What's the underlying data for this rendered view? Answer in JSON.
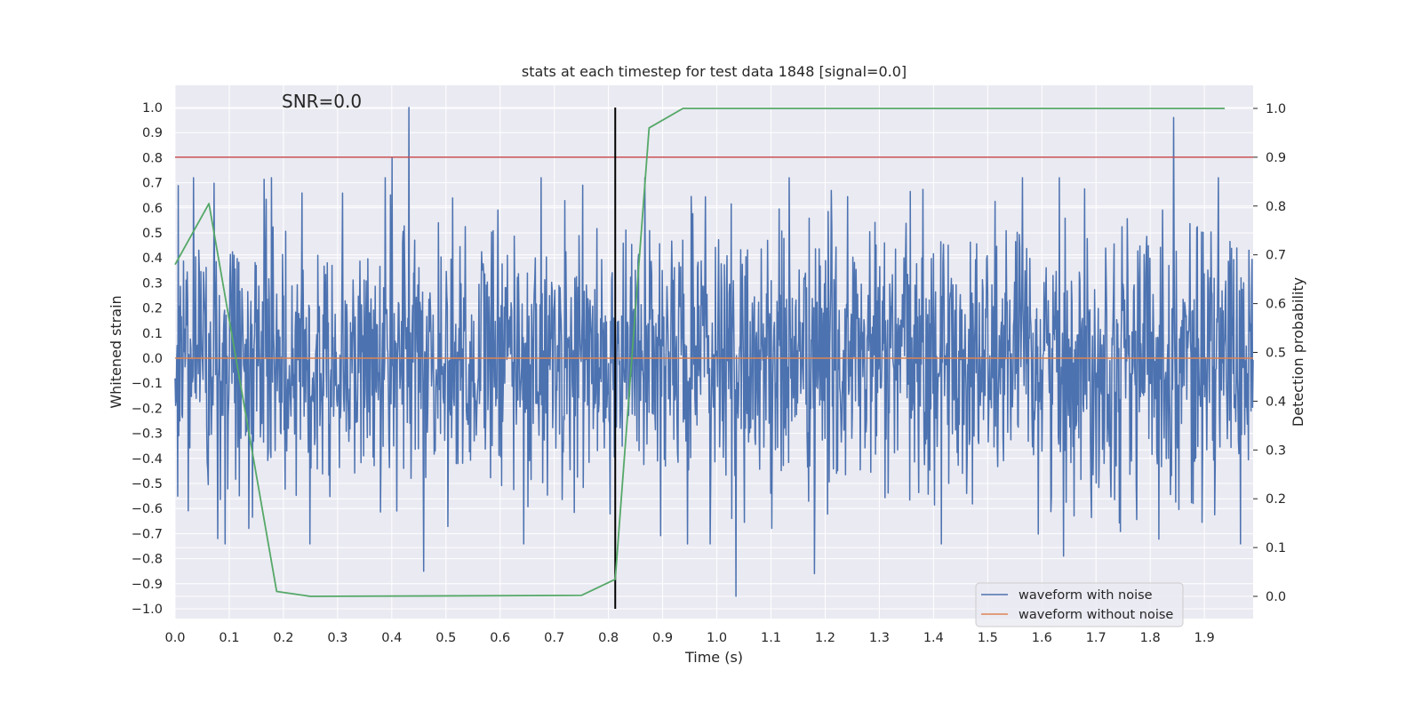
{
  "chart_data": {
    "type": "line",
    "title": "stats at each timestep for test data 1848 [signal=0.0]",
    "annotation": "SNR=0.0",
    "xlabel": "Time (s)",
    "ylabel": "Whitened strain",
    "y2label": "Detection probability",
    "xlim": [
      0.0,
      1.99
    ],
    "ylim": [
      -1.05,
      1.05
    ],
    "y2lim": [
      -0.045,
      1.045
    ],
    "grid": true,
    "legend_position": "lower-right",
    "xticks": [
      "0.0",
      "0.1",
      "0.2",
      "0.3",
      "0.4",
      "0.5",
      "0.6",
      "0.7",
      "0.8",
      "0.9",
      "1.0",
      "1.1",
      "1.2",
      "1.3",
      "1.4",
      "1.5",
      "1.6",
      "1.7",
      "1.8",
      "1.9"
    ],
    "yticks": [
      "1.0",
      "0.9",
      "0.8",
      "0.7",
      "0.6",
      "0.5",
      "0.4",
      "0.3",
      "0.2",
      "0.1",
      "0.0",
      "−0.1",
      "−0.2",
      "−0.3",
      "−0.4",
      "−0.5",
      "−0.6",
      "−0.7",
      "−0.8",
      "−0.9",
      "−1.0"
    ],
    "y2ticks": [
      "1.0",
      "0.9",
      "0.8",
      "0.7",
      "0.6",
      "0.5",
      "0.4",
      "0.3",
      "0.2",
      "0.1",
      "0.0"
    ],
    "series": [
      {
        "name": "waveform with noise",
        "color": "#4c72b0",
        "axis": "left",
        "num_samples": 2048,
        "range": [
          -0.95,
          1.0
        ],
        "notable_peaks": [
          {
            "x": 0.432,
            "y": 1.0
          },
          {
            "x": 0.401,
            "y": 0.8
          },
          {
            "x": 1.843,
            "y": 0.96
          },
          {
            "x": 1.035,
            "y": -0.95
          },
          {
            "x": 0.079,
            "y": -0.72
          },
          {
            "x": 1.18,
            "y": -0.86
          },
          {
            "x": 0.459,
            "y": -0.85
          },
          {
            "x": 1.64,
            "y": -0.79
          }
        ]
      },
      {
        "name": "waveform without noise",
        "color": "#dd8452",
        "axis": "left",
        "x": [
          0.0,
          1.99
        ],
        "y": [
          0.0,
          0.0
        ]
      },
      {
        "color": "#55a868",
        "axis": "right",
        "x": [
          0.0,
          0.0625,
          0.1875,
          0.25,
          0.75,
          0.8125,
          0.875,
          0.9375,
          1.9375
        ],
        "y": [
          0.68,
          0.805,
          0.01,
          0.0,
          0.002,
          0.035,
          0.96,
          1.0,
          1.0
        ]
      }
    ],
    "hlines": [
      {
        "axis": "right",
        "y": 0.9,
        "color": "#c44e52"
      }
    ],
    "vlines": [
      {
        "x": 0.8125,
        "y_range": [
          -1.0,
          1.0
        ],
        "color": "#000000"
      }
    ]
  }
}
